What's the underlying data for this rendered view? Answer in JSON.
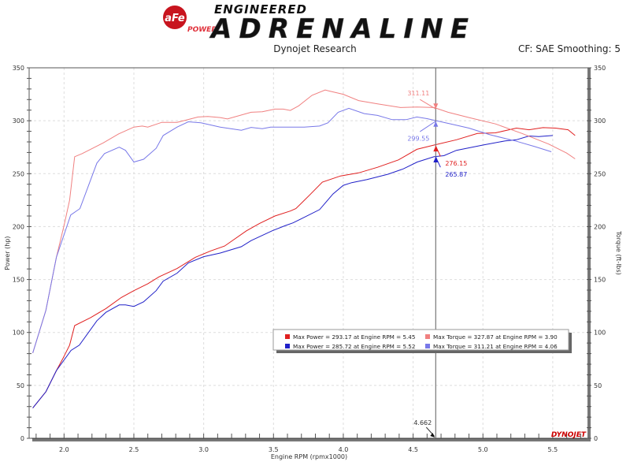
{
  "header": {
    "logo_brand": "aFe POWER",
    "logo_tagline": "ENGINEERED",
    "logo_title": "ADRENALINE",
    "subtitle": "Dynojet Research",
    "correction": "CF: SAE Smoothing: 5"
  },
  "watermark": "DYNOJET",
  "chart_data": {
    "type": "line",
    "xlabel": "Engine RPM (rpmx1000)",
    "ylabel_left": "Power (hp)",
    "ylabel_right": "Torque (ft-lbs)",
    "xlim": [
      1.75,
      5.76
    ],
    "ylim": [
      0,
      350
    ],
    "xticks": [
      "2.0",
      "2.5",
      "3.0",
      "3.5",
      "4.0",
      "4.5",
      "5.0",
      "5.5"
    ],
    "yticks": [
      "0",
      "50",
      "100",
      "150",
      "200",
      "250",
      "300",
      "350"
    ],
    "grid": true,
    "legend_position": "lower-right",
    "cursor": {
      "x": 4.662,
      "label": "4.662"
    },
    "series": [
      {
        "name": "Max Power = 293.17 at Engine RPM = 5.45",
        "color": "#e02020",
        "cursor_value": "276.15",
        "x": [
          1.776,
          1.87,
          1.945,
          1.99,
          2.04,
          2.076,
          2.19,
          2.3,
          2.41,
          2.5,
          2.6,
          2.68,
          2.81,
          2.94,
          3.05,
          3.15,
          3.306,
          3.4,
          3.51,
          3.62,
          3.66,
          3.757,
          3.85,
          3.98,
          4.11,
          4.245,
          4.395,
          4.527,
          4.65,
          4.81,
          4.96,
          5.09,
          5.24,
          5.33,
          5.43,
          5.52,
          5.61,
          5.66
        ],
        "y": [
          28.6,
          44,
          64,
          75,
          88,
          106.5,
          114,
          122.6,
          133,
          139.5,
          146,
          152.5,
          160.4,
          171,
          177,
          181.6,
          196,
          203,
          210,
          214.7,
          217,
          229.6,
          242,
          247.8,
          250.7,
          256,
          263,
          273,
          277,
          282,
          288,
          288.6,
          293,
          291.5,
          293.5,
          293,
          291.5,
          286
        ]
      },
      {
        "name": "Max Power = 285.72 at Engine RPM = 5.52",
        "color": "#2020c8",
        "cursor_value": "265.87",
        "x": [
          1.776,
          1.87,
          1.945,
          2.05,
          2.11,
          2.235,
          2.3,
          2.395,
          2.44,
          2.5,
          2.57,
          2.66,
          2.71,
          2.81,
          2.89,
          3.0,
          3.118,
          3.27,
          3.34,
          3.49,
          3.585,
          3.64,
          3.83,
          3.926,
          4.0,
          4.06,
          4.17,
          4.32,
          4.43,
          4.53,
          4.65,
          4.72,
          4.81,
          5.0,
          5.16,
          5.24,
          5.33,
          5.4,
          5.5
        ],
        "y": [
          28.6,
          44,
          64,
          83,
          88,
          111,
          119,
          126,
          126,
          124.6,
          129,
          139.5,
          148.5,
          156,
          165.7,
          171.6,
          175,
          181,
          186.8,
          196,
          201,
          203.5,
          216,
          230.8,
          239,
          241.5,
          244.5,
          249.5,
          254.5,
          261,
          266,
          267,
          272,
          277,
          281,
          282,
          285.6,
          285,
          286
        ]
      },
      {
        "name": "Max Torque = 327.87 at Engine RPM = 3.90",
        "color": "#f08080",
        "cursor_value": "311.11",
        "x": [
          1.776,
          1.87,
          1.945,
          2.0,
          2.04,
          2.076,
          2.13,
          2.19,
          2.28,
          2.39,
          2.5,
          2.56,
          2.6,
          2.7,
          2.81,
          2.96,
          3.03,
          3.118,
          3.17,
          3.34,
          3.42,
          3.51,
          3.57,
          3.62,
          3.68,
          3.776,
          3.87,
          3.9,
          4.0,
          4.11,
          4.245,
          4.41,
          4.527,
          4.65,
          4.75,
          4.9,
          5.09,
          5.28,
          5.47,
          5.6,
          5.66
        ],
        "y": [
          80.6,
          121,
          171,
          201,
          225,
          266,
          269,
          273,
          279,
          287.5,
          294,
          295,
          294,
          298.5,
          298.5,
          303.5,
          304,
          303,
          301.7,
          308,
          308.5,
          311,
          311,
          309.7,
          314,
          324,
          329,
          328,
          325,
          319,
          316,
          312.5,
          313,
          312.5,
          308,
          303,
          297,
          288,
          278,
          269.4,
          264
        ]
      },
      {
        "name": "Max Torque = 311.21 at Engine RPM = 4.06",
        "color": "#7878e8",
        "cursor_value": "299.55",
        "x": [
          1.776,
          1.87,
          1.945,
          2.048,
          2.114,
          2.235,
          2.29,
          2.395,
          2.44,
          2.5,
          2.57,
          2.66,
          2.71,
          2.81,
          2.89,
          2.98,
          3.118,
          3.27,
          3.34,
          3.42,
          3.48,
          3.72,
          3.83,
          3.89,
          3.963,
          4.04,
          4.15,
          4.245,
          4.35,
          4.45,
          4.527,
          4.6,
          4.65,
          4.77,
          4.9,
          5.05,
          5.24,
          5.37,
          5.49
        ],
        "y": [
          80.6,
          121,
          171,
          211,
          217,
          260,
          269,
          275,
          272,
          261,
          263.6,
          274,
          286,
          294,
          299,
          298,
          294,
          291,
          293.7,
          292.5,
          294,
          294,
          295,
          298,
          308,
          311.7,
          306.7,
          305,
          301,
          301,
          303.5,
          302,
          300.5,
          297,
          293,
          286.8,
          280.6,
          275.6,
          270.7
        ]
      }
    ]
  }
}
